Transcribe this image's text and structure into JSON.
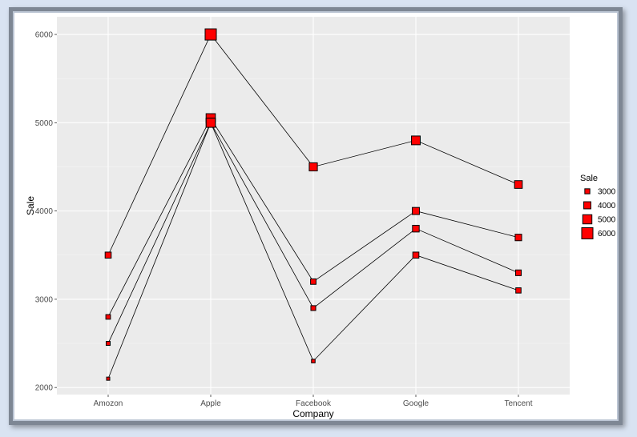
{
  "chart_data": {
    "type": "line",
    "xlabel": "Company",
    "ylabel": "Sale",
    "categories": [
      "Amozon",
      "Apple",
      "Facebook",
      "Google",
      "Tencent"
    ],
    "ylim": [
      1920,
      6200
    ],
    "yticks": [
      2000,
      3000,
      4000,
      5000,
      6000
    ],
    "grid": true,
    "marker": "square",
    "marker_color": "#ff0000",
    "panel_background": "#ebebeb",
    "series": [
      {
        "values": [
          3500,
          6000,
          4500,
          4800,
          4300
        ]
      },
      {
        "values": [
          2800,
          5050,
          3200,
          4000,
          3700
        ]
      },
      {
        "values": [
          2500,
          5000,
          2900,
          3800,
          3300
        ]
      },
      {
        "values": [
          2100,
          5000,
          2300,
          3500,
          3100
        ]
      }
    ],
    "legend": {
      "title": "Sale",
      "placement": "right",
      "entries": [
        3000,
        4000,
        5000,
        6000
      ]
    }
  }
}
